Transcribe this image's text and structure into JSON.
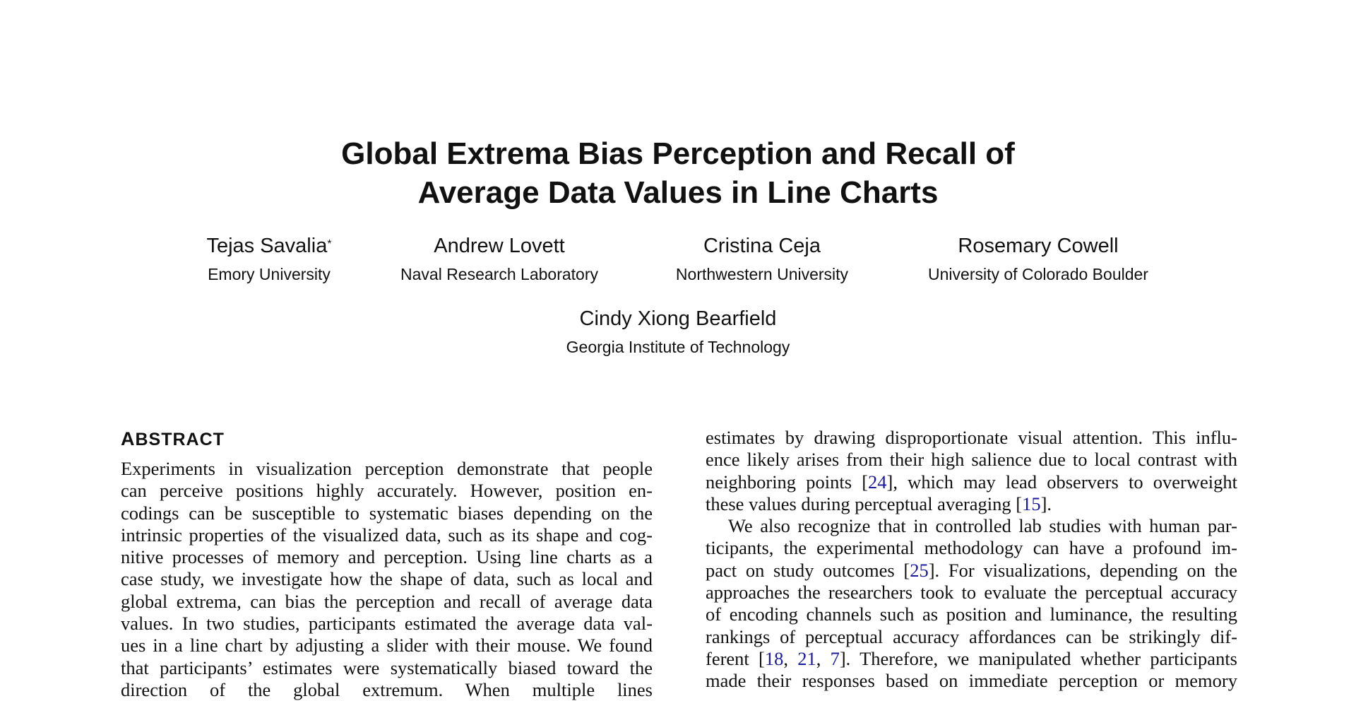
{
  "title": {
    "line1": "Global Extrema Bias Perception and Recall of",
    "line2": "Average Data Values in Line Charts"
  },
  "authors": [
    {
      "name": "Tejas Savalia",
      "mark": "*",
      "affiliation": "Emory University"
    },
    {
      "name": "Andrew Lovett",
      "mark": "",
      "affiliation": "Naval Research Laboratory"
    },
    {
      "name": "Cristina Ceja",
      "mark": "",
      "affiliation": "Northwestern University"
    },
    {
      "name": "Rosemary Cowell",
      "mark": "",
      "affiliation": "University of Colorado Boulder"
    },
    {
      "name": "Cindy Xiong Bearfield",
      "mark": "",
      "affiliation": "Georgia Institute of Technology"
    }
  ],
  "abstract": {
    "heading_initial": "A",
    "heading_rest": "BSTRACT",
    "left_lines": [
      {
        "text": "Experiments in visualization perception demonstrate that people"
      },
      {
        "text": "can perceive positions highly accurately.  However, position en-"
      },
      {
        "text": "codings can be susceptible to systematic biases depending on the"
      },
      {
        "text": "intrinsic properties of the visualized data, such as its shape and cog-"
      },
      {
        "text": "nitive processes of memory and perception. Using line charts as a"
      },
      {
        "text": "case study, we investigate how the shape of data, such as local and"
      },
      {
        "text": "global extrema, can bias the perception and recall of average data"
      },
      {
        "text": "values. In two studies, participants estimated the average data val-"
      },
      {
        "text": "ues in a line chart by adjusting a slider with their mouse. We found"
      },
      {
        "text": "that participants’ estimates were systematically biased toward the"
      },
      {
        "text": "direction of the global extremum. When multiple lines"
      }
    ]
  },
  "body": {
    "right_lines": [
      {
        "text": "estimates by drawing disproportionate visual attention. This influ-"
      },
      {
        "text": "ence likely arises from their high salience due to local contrast with"
      },
      {
        "text": "neighboring points [{24}], which may lead observers to overweight"
      },
      {
        "text": "these values during perceptual averaging [{15}].",
        "last": true
      },
      {
        "text": "We also recognize that in controlled lab studies with human par-",
        "indent": true
      },
      {
        "text": "ticipants, the experimental methodology can have a profound im-"
      },
      {
        "text": "pact on study outcomes [{25}]. For visualizations, depending on the"
      },
      {
        "text": "approaches the researchers took to evaluate the perceptual accuracy"
      },
      {
        "text": "of encoding channels such as position and luminance, the resulting"
      },
      {
        "text": "rankings of perceptual accuracy affordances can be strikingly dif-"
      },
      {
        "text": "ferent [{18}, {21}, {7}]. Therefore, we manipulated whether participants"
      },
      {
        "text": "made their responses based on immediate perception or memory"
      }
    ]
  },
  "colors": {
    "citation": "#1a1a9c",
    "text": "#111111"
  }
}
